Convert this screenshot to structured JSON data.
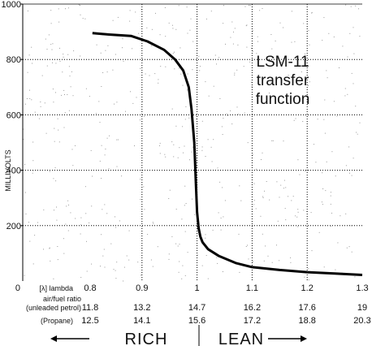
{
  "chart_data": {
    "type": "line",
    "title_lines": [
      "LSM-11",
      "transfer",
      "function"
    ],
    "ylabel": "MILLIVOLTS",
    "ylim": [
      0,
      1000
    ],
    "xlim": [
      0.8,
      1.3
    ],
    "y_ticks": [
      0,
      200,
      400,
      600,
      800,
      1000
    ],
    "y_tick_labels": [
      "0",
      "200",
      "400",
      "600",
      "800",
      "1000"
    ],
    "x_axis_rows": [
      {
        "label": "[λ] lambda",
        "ticks": [
          0.8,
          0.9,
          1,
          1.1,
          1.2,
          1.3
        ],
        "tick_labels": [
          "0.8",
          "0.9",
          "1",
          "1.1",
          "1.2",
          "1.3"
        ]
      },
      {
        "label": "air/fuel ratio (unleaded petrol)",
        "label_lines": [
          "air/fuel ratio",
          "(unleaded petrol)"
        ],
        "ticks": [
          0.8,
          0.9,
          1,
          1.1,
          1.2,
          1.3
        ],
        "tick_labels": [
          "11.8",
          "13.2",
          "14.7",
          "16.2",
          "17.6",
          "19"
        ]
      },
      {
        "label": "(Propane)",
        "ticks": [
          0.8,
          0.9,
          1,
          1.1,
          1.2,
          1.3
        ],
        "tick_labels": [
          "12.5",
          "14.1",
          "15.6",
          "17.2",
          "18.8",
          "20.3"
        ]
      }
    ],
    "zero_label": "0",
    "rich_label": "RICH",
    "lean_label": "LEAN",
    "grid": true,
    "series": [
      {
        "x": [
          0.81,
          0.84,
          0.88,
          0.91,
          0.94,
          0.96,
          0.975,
          0.985,
          0.99,
          0.995,
          0.998,
          1.0,
          1.003,
          1.006,
          1.01,
          1.02,
          1.04,
          1.07,
          1.1,
          1.15,
          1.2,
          1.25,
          1.3
        ],
        "y": [
          895,
          890,
          885,
          865,
          835,
          800,
          760,
          700,
          620,
          500,
          350,
          250,
          190,
          160,
          140,
          115,
          90,
          65,
          50,
          40,
          32,
          27,
          22
        ]
      }
    ]
  }
}
